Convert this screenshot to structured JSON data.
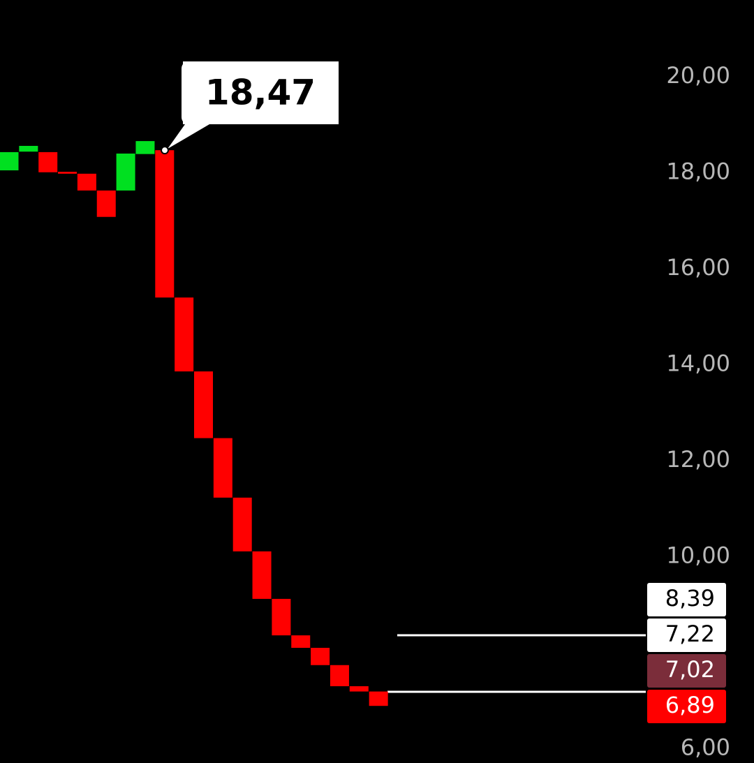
{
  "chart_data": {
    "type": "candlestick",
    "open": [
      18.05,
      18.44,
      18.43,
      18.02,
      17.98,
      17.63,
      17.63,
      18.39,
      18.47,
      15.4,
      13.86,
      12.47,
      11.23,
      10.11,
      9.12,
      8.36,
      8.1,
      7.74,
      7.3,
      7.19
    ],
    "close": [
      18.43,
      18.56,
      18.01,
      17.98,
      17.63,
      17.08,
      18.4,
      18.66,
      15.4,
      13.86,
      12.47,
      11.23,
      10.11,
      9.12,
      8.36,
      8.1,
      7.74,
      7.3,
      7.19,
      6.89
    ],
    "up_color": "#00e020",
    "down_color": "#ff0000",
    "ylim": [
      5.7,
      21.6
    ],
    "yticks": [
      {
        "value": 20,
        "label": "20,00"
      },
      {
        "value": 18,
        "label": "18,00"
      },
      {
        "value": 16,
        "label": "16,00"
      },
      {
        "value": 14,
        "label": "14,00"
      },
      {
        "value": 12,
        "label": "12,00"
      },
      {
        "value": 10,
        "label": "10,00"
      },
      {
        "value": 6,
        "label": "6,00"
      }
    ],
    "callout": {
      "value": 18.47,
      "label": "18,47"
    },
    "price_labels": [
      {
        "value": 8.39,
        "label": "8,39",
        "background": "#ffffff",
        "text_color": "#000000"
      },
      {
        "value": 7.22,
        "label": "7,22",
        "background": "#ffffff",
        "text_color": "#000000"
      },
      {
        "value": 7.02,
        "label": "7,02",
        "background": "#7b2d3a",
        "text_color": "#ffffff"
      },
      {
        "value": 6.89,
        "label": "6,89",
        "background": "#ff0000",
        "text_color": "#ffffff"
      }
    ]
  }
}
